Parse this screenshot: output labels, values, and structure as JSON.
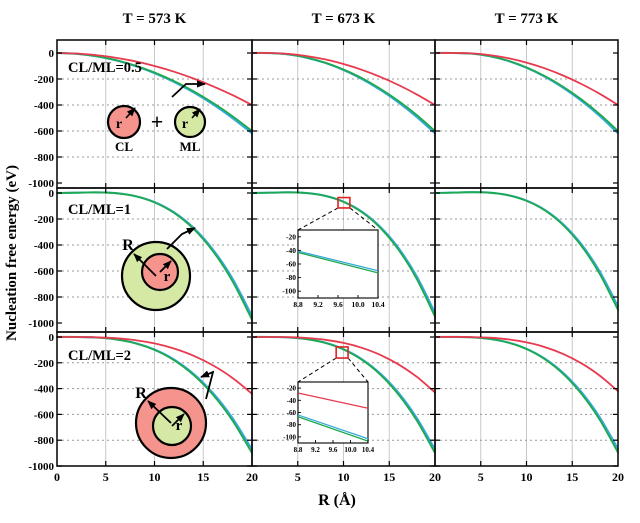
{
  "axes": {
    "x_label": "R (Å)",
    "y_label": "Nucleation free energy (eV)",
    "x_ticks": [
      0,
      5,
      10,
      15,
      20
    ],
    "y_ticks": [
      0,
      -200,
      -400,
      -600,
      -800,
      -1000
    ],
    "x_gridlines": [
      5,
      10,
      15
    ],
    "y_gridlines": [
      -200,
      -400,
      -600,
      -800
    ]
  },
  "columns": [
    {
      "title": "T = 573 K"
    },
    {
      "title": "T = 673 K"
    },
    {
      "title": "T = 773 K"
    }
  ],
  "rows": [
    {
      "label": "CL/ML=0.5",
      "diagram": {
        "type": "two-separate-particles",
        "left_circle_label": "CL",
        "right_circle_label": "ML",
        "left_radius_label": "r",
        "right_radius_label": "r",
        "operator": "+",
        "left_fill_key": "circle_red",
        "right_fill_key": "circle_green"
      }
    },
    {
      "label": "CL/ML=1",
      "diagram": {
        "type": "core-shell",
        "outer_radius_label": "R",
        "inner_radius_label": "r",
        "outer_fill_key": "circle_green",
        "inner_fill_key": "circle_red"
      }
    },
    {
      "label": "CL/ML=2",
      "diagram": {
        "type": "core-shell",
        "outer_radius_label": "R",
        "inner_radius_label": "r",
        "outer_fill_key": "circle_red",
        "inner_fill_key": "circle_green"
      }
    }
  ],
  "chart_data": {
    "type": "line",
    "title": "",
    "xlabel": "R (Å)",
    "ylabel": "Nucleation free energy (eV)",
    "x_range": [
      0,
      20
    ],
    "y_range": [
      50,
      -1050
    ],
    "x": [
      0,
      2,
      4,
      6,
      8,
      10,
      12,
      14,
      16,
      18,
      20
    ],
    "panels": [
      {
        "row": 0,
        "col": 0,
        "temperature": "T = 573 K",
        "ratio": "CL/ML=0.5",
        "series": [
          {
            "color_key": "blue",
            "values": [
              0,
              -6.2,
              -24.7,
              -55.6,
              -98.9,
              -154.5,
              -222.5,
              -302.8,
              -395.5,
              -500.6,
              -618
            ]
          },
          {
            "color_key": "green",
            "values": [
              0,
              -6,
              -24,
              -54,
              -96,
              -150,
              -216,
              -294,
              -384,
              -486,
              -600
            ]
          },
          {
            "color_key": "red",
            "values": [
              0,
              -4,
              -16,
              -36,
              -64,
              -100,
              -144,
              -196,
              -256,
              -324,
              -400
            ]
          }
        ]
      },
      {
        "row": 0,
        "col": 1,
        "temperature": "T = 673 K",
        "ratio": "CL/ML=0.5",
        "series": [
          {
            "color_key": "blue",
            "values": [
              0,
              -0.5,
              -11.3,
              -36.6,
              -76.3,
              -130.5,
              -199.1,
              -282.1,
              -379.7,
              -491.6,
              -618
            ]
          },
          {
            "color_key": "green",
            "values": [
              0,
              -0.4,
              -11,
              -35.5,
              -74.1,
              -126.7,
              -193.3,
              -273.9,
              -368.6,
              -477.3,
              -600
            ]
          },
          {
            "color_key": "red",
            "values": [
              0,
              -0.3,
              -7.3,
              -23.7,
              -49.4,
              -84.5,
              -129,
              -182.8,
              -246,
              -318.5,
              -400
            ]
          }
        ]
      },
      {
        "row": 0,
        "col": 2,
        "temperature": "T = 773 K",
        "ratio": "CL/ML=0.5",
        "series": [
          {
            "color_key": "blue",
            "values": [
              0,
              0,
              -4.5,
              -24.7,
              -61.1,
              -113.5,
              -182.1,
              -266.9,
              -367.7,
              -484.7,
              -618
            ]
          },
          {
            "color_key": "green",
            "values": [
              0,
              0,
              -4.4,
              -24,
              -59.3,
              -110.2,
              -176.8,
              -259.1,
              -357,
              -470.6,
              -600
            ]
          },
          {
            "color_key": "red",
            "values": [
              0,
              0,
              -2.9,
              -16,
              -39.5,
              -73.5,
              -118,
              -172.9,
              -238.2,
              -314,
              -400
            ]
          }
        ]
      },
      {
        "row": 1,
        "col": 0,
        "temperature": "T = 573 K",
        "ratio": "CL/ML=1",
        "series": [
          {
            "color_key": "blue",
            "values": [
              0,
              2.5,
              4.9,
              -1.1,
              -23.4,
              -69.8,
              -148.6,
              -267.6,
              -435,
              -658.7,
              -946.7
            ]
          },
          {
            "color_key": "green",
            "values": [
              0,
              2.6,
              5,
              -1.2,
              -24.1,
              -72,
              -153.2,
              -275.9,
              -448.5,
              -679.1,
              -976
            ]
          }
        ]
      },
      {
        "row": 1,
        "col": 1,
        "temperature": "T = 673 K",
        "ratio": "CL/ML=1",
        "series": [
          {
            "color_key": "blue",
            "values": [
              0,
              2.6,
              5,
              -0.4,
              -21.6,
              -66.6,
              -143.2,
              -259.1,
              -422.3,
              -641,
              -922.3
            ]
          },
          {
            "color_key": "green",
            "values": [
              0,
              2.7,
              5.2,
              -0.4,
              -22.3,
              -68.7,
              -147.6,
              -267.1,
              -435.4,
              -660.8,
              -950.8
            ]
          }
        ]
      },
      {
        "row": 1,
        "col": 2,
        "temperature": "T = 773 K",
        "ratio": "CL/ML=1",
        "series": [
          {
            "color_key": "blue",
            "values": [
              0,
              2.8,
              6,
              2.1,
              -16.8,
              -58.2,
              -129.9,
              -239.6,
              -394.8,
              -603.4,
              -873
            ]
          },
          {
            "color_key": "green",
            "values": [
              0,
              2.9,
              6.2,
              2.2,
              -17.3,
              -60,
              -133.9,
              -247,
              -407,
              -622.1,
              -900
            ]
          }
        ]
      },
      {
        "row": 2,
        "col": 0,
        "temperature": "T = 573 K",
        "ratio": "CL/ML=2",
        "series": [
          {
            "color_key": "blue",
            "values": [
              0,
              0,
              -3.9,
              -17.5,
              -46.6,
              -97,
              -174.6,
              -285.2,
              -434.6,
              -628.6,
              -873
            ]
          },
          {
            "color_key": "green",
            "values": [
              0,
              0,
              -4,
              -18,
              -48,
              -100,
              -180,
              -294,
              -448,
              -648,
              -900
            ]
          },
          {
            "color_key": "red",
            "values": [
              0,
              -0.1,
              -2.2,
              -9.4,
              -24.3,
              -50,
              -89.3,
              -145,
              -220.2,
              -317.5,
              -440
            ]
          }
        ]
      },
      {
        "row": 2,
        "col": 1,
        "temperature": "T = 673 K",
        "ratio": "CL/ML=2",
        "series": [
          {
            "color_key": "blue",
            "values": [
              0,
              0.2,
              -3.2,
              -16.2,
              -44.5,
              -94.4,
              -171.6,
              -282.1,
              -431.9,
              -626.8,
              -873
            ]
          },
          {
            "color_key": "green",
            "values": [
              0,
              0.2,
              -3.3,
              -16.7,
              -45.9,
              -97.3,
              -176.9,
              -290.8,
              -445.3,
              -646.2,
              -900
            ]
          },
          {
            "color_key": "red",
            "values": [
              0,
              0.1,
              -1.4,
              -7.6,
              -21.4,
              -45.8,
              -83.6,
              -138,
              -211.9,
              -308,
              -429.6
            ]
          }
        ]
      },
      {
        "row": 2,
        "col": 2,
        "temperature": "T = 773 K",
        "ratio": "CL/ML=2",
        "series": [
          {
            "color_key": "blue",
            "values": [
              0,
              0.4,
              -2.5,
              -14.6,
              -42.3,
              -91.2,
              -167.6,
              -277.5,
              -427.1,
              -622.4,
              -869
            ]
          },
          {
            "color_key": "green",
            "values": [
              0,
              0.4,
              -2.6,
              -15.1,
              -43.6,
              -94,
              -172.8,
              -286.1,
              -440.3,
              -641.6,
              -896
            ]
          },
          {
            "color_key": "red",
            "values": [
              0,
              0.4,
              -0.5,
              -5.8,
              -18.4,
              -41.5,
              -78,
              -131.1,
              -203.8,
              -298.9,
              -420
            ]
          }
        ]
      }
    ],
    "insets": [
      {
        "row": 1,
        "col": 1,
        "x_range": [
          8.8,
          10.4
        ],
        "y_range": [
          -10,
          -110
        ],
        "x_ticks": [
          "8.8",
          "9.2",
          "9.6",
          "10.0",
          "10.4"
        ],
        "y_ticks": [
          -20,
          -40,
          -60,
          -80,
          -100
        ],
        "series": [
          {
            "color_key": "blue",
            "points": [
              [
                8.8,
                -41
              ],
              [
                10.4,
                -70
              ]
            ]
          },
          {
            "color_key": "green",
            "points": [
              [
                8.8,
                -43
              ],
              [
                10.4,
                -73
              ]
            ]
          }
        ],
        "zoom_box": {
          "x": [
            9.4,
            10.7
          ],
          "v": [
            -35,
            -115
          ]
        }
      },
      {
        "row": 2,
        "col": 1,
        "x_range": [
          8.8,
          10.4
        ],
        "y_range": [
          -10,
          -110
        ],
        "x_ticks": [
          "8.8",
          "9.2",
          "9.6",
          "10.0",
          "10.4"
        ],
        "y_ticks": [
          -20,
          -40,
          -60,
          -80,
          -100
        ],
        "series": [
          {
            "color_key": "red",
            "points": [
              [
                8.8,
                -28
              ],
              [
                10.4,
                -53
              ]
            ]
          },
          {
            "color_key": "blue",
            "points": [
              [
                8.8,
                -64
              ],
              [
                10.4,
                -103
              ]
            ]
          },
          {
            "color_key": "green",
            "points": [
              [
                8.8,
                -67
              ],
              [
                10.4,
                -107
              ]
            ]
          }
        ],
        "zoom_box": {
          "x": [
            9.2,
            10.5
          ],
          "v": [
            -77,
            -163
          ]
        }
      }
    ]
  },
  "colors": {
    "red": "#e83a4e",
    "green": "#1fa94e",
    "blue": "#36a9dc",
    "circle_red": "#f5938d",
    "circle_green": "#d5e8a4",
    "grid_v": "#c9c9c9",
    "grid_h": "#999999",
    "frame": "#111111",
    "zoom_box": "#e02424",
    "text": "#000000"
  }
}
